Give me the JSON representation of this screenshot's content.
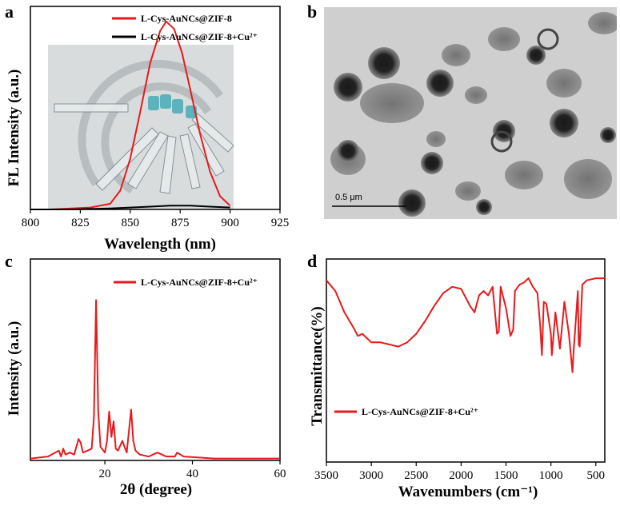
{
  "panels": {
    "a": {
      "label": "a",
      "chart_data": {
        "type": "line",
        "xlabel": "Wavelength (nm)",
        "ylabel": "FL Intensity (a.u.)",
        "xlim": [
          800,
          925
        ],
        "xticks": [
          "800",
          "825",
          "850",
          "875",
          "900",
          "925"
        ],
        "series": [
          {
            "name": "L-Cys-AuNCs@ZIF-8",
            "color": "#e8191b",
            "x": [
              810,
              830,
              840,
              845,
              850,
              855,
              860,
              865,
              868,
              872,
              876,
              880,
              885,
              890,
              895,
              900
            ],
            "y": [
              0.0,
              0.01,
              0.03,
              0.1,
              0.27,
              0.52,
              0.78,
              0.95,
              1.0,
              0.96,
              0.83,
              0.64,
              0.4,
              0.2,
              0.07,
              0.02
            ]
          },
          {
            "name": "L-Cys-AuNCs@ZIF-8+Cu²⁺",
            "color": "#000000",
            "x": [
              800,
              820,
              840,
              860,
              870,
              880,
              890,
              900
            ],
            "y": [
              0.0,
              0.0,
              0.005,
              0.015,
              0.02,
              0.02,
              0.015,
              0.01
            ]
          }
        ],
        "legend": "top-right",
        "inset": "photo of tubes in fan arrangement"
      }
    },
    "b": {
      "label": "b",
      "scale_bar": "0.5 μm"
    },
    "c": {
      "label": "c",
      "chart_data": {
        "type": "line",
        "xlabel": "2θ (degree)",
        "ylabel": "Intensity (a.u.)",
        "xlim": [
          3,
          60
        ],
        "xticks": [
          "20",
          "40",
          "60"
        ],
        "series": [
          {
            "name": "L-Cys-AuNCs@ZIF-8+Cu²⁺",
            "color": "#e8191b",
            "x": [
              3,
              7,
              9.5,
              10,
              10.5,
              11,
              12,
              13,
              14,
              14.5,
              15,
              16,
              17,
              17.5,
              18,
              18.5,
              19,
              20,
              20.5,
              21,
              21.5,
              22,
              22.5,
              23,
              24,
              25,
              26,
              26.5,
              27,
              28,
              30,
              32,
              34,
              36,
              36.5,
              38,
              45,
              50,
              60
            ],
            "y": [
              0.01,
              0.02,
              0.05,
              0.02,
              0.06,
              0.03,
              0.04,
              0.03,
              0.11,
              0.09,
              0.04,
              0.05,
              0.06,
              0.22,
              0.82,
              0.25,
              0.07,
              0.04,
              0.1,
              0.25,
              0.12,
              0.2,
              0.06,
              0.05,
              0.1,
              0.04,
              0.26,
              0.1,
              0.05,
              0.03,
              0.02,
              0.04,
              0.02,
              0.02,
              0.04,
              0.02,
              0.01,
              0.01,
              0.01
            ]
          }
        ],
        "legend": "top-right"
      }
    },
    "d": {
      "label": "d",
      "chart_data": {
        "type": "line",
        "xlabel": "Wavenumbers (cm⁻¹)",
        "ylabel": "Transmittance(%)",
        "xlim": [
          3500,
          400
        ],
        "xticks": [
          "3500",
          "3000",
          "2500",
          "2000",
          "1500",
          "1000",
          "500"
        ],
        "series": [
          {
            "name": "L-Cys-AuNCs@ZIF-8+Cu²⁺",
            "color": "#e8191b",
            "x": [
              3500,
              3400,
              3300,
              3200,
              3150,
              3100,
              3000,
              2900,
              2800,
              2700,
              2600,
              2500,
              2400,
              2300,
              2200,
              2100,
              2000,
              1900,
              1850,
              1800,
              1750,
              1700,
              1650,
              1600,
              1580,
              1560,
              1500,
              1450,
              1420,
              1400,
              1350,
              1300,
              1250,
              1200,
              1150,
              1120,
              1100,
              1080,
              1050,
              1000,
              990,
              950,
              900,
              850,
              800,
              760,
              750,
              700,
              690,
              680,
              650,
              600,
              500,
              400
            ],
            "y": [
              0.95,
              0.9,
              0.8,
              0.73,
              0.69,
              0.7,
              0.66,
              0.66,
              0.65,
              0.64,
              0.66,
              0.7,
              0.76,
              0.83,
              0.89,
              0.92,
              0.91,
              0.83,
              0.8,
              0.88,
              0.9,
              0.88,
              0.92,
              0.7,
              0.71,
              0.92,
              0.82,
              0.69,
              0.72,
              0.9,
              0.93,
              0.94,
              0.96,
              0.92,
              0.89,
              0.74,
              0.6,
              0.85,
              0.84,
              0.7,
              0.6,
              0.8,
              0.63,
              0.85,
              0.7,
              0.52,
              0.6,
              0.9,
              0.65,
              0.64,
              0.93,
              0.95,
              0.96,
              0.96
            ]
          }
        ],
        "legend": "bottom-left"
      }
    }
  }
}
